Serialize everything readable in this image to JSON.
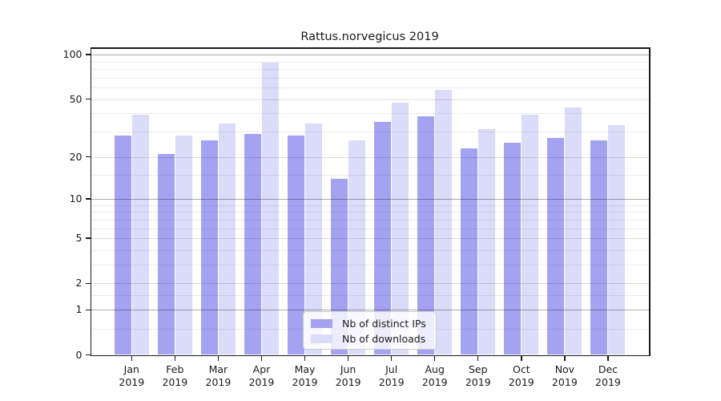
{
  "title": "Rattus.norvegicus 2019",
  "colors": {
    "ips": "#a3a3f2",
    "downloads": "#dbdbfa",
    "grid_decade": "rgba(0,0,0,0.33)",
    "grid_mid": "rgba(0,0,0,0.13)",
    "grid_minor": "rgba(0,0,0,0.07)",
    "axis": "#1a1a1a",
    "text": "#1a1a1a",
    "legend_border": "#cccccc",
    "legend_bg": "rgba(255,255,255,0.8)"
  },
  "legend": {
    "items": [
      {
        "key": "ips",
        "label": "Nb of distinct IPs"
      },
      {
        "key": "downloads",
        "label": "Nb of downloads"
      }
    ],
    "position": "lower center"
  },
  "chart_data": {
    "type": "bar",
    "title": "Rattus.norvegicus 2019",
    "categories": [
      "Jan 2019",
      "Feb 2019",
      "Mar 2019",
      "Apr 2019",
      "May 2019",
      "Jun 2019",
      "Jul 2019",
      "Aug 2019",
      "Sep 2019",
      "Oct 2019",
      "Nov 2019",
      "Dec 2019"
    ],
    "month_labels": [
      "Jan",
      "Feb",
      "Mar",
      "Apr",
      "May",
      "Jun",
      "Jul",
      "Aug",
      "Sep",
      "Oct",
      "Nov",
      "Dec"
    ],
    "year_label": "2019",
    "series": [
      {
        "name": "Nb of distinct IPs",
        "color_key": "ips",
        "values": [
          28,
          21,
          26,
          29,
          28,
          14,
          35,
          38,
          23,
          25,
          27,
          26
        ]
      },
      {
        "name": "Nb of downloads",
        "color_key": "downloads",
        "values": [
          39,
          28,
          34,
          89,
          34,
          26,
          47,
          58,
          31,
          39,
          44,
          33
        ]
      }
    ],
    "xlabel": "",
    "ylabel": "",
    "y_scale": "log1p",
    "ylim": [
      0,
      110
    ],
    "y_ticks": [
      0,
      1,
      2,
      5,
      10,
      20,
      50,
      100
    ],
    "y_grid_decade": [
      1,
      10,
      100
    ],
    "y_grid_mid": [
      2,
      5,
      20,
      50
    ],
    "y_grid_minor": [
      0.5,
      1.5,
      3,
      4,
      6,
      7,
      8,
      9,
      15,
      30,
      40,
      60,
      70,
      80,
      90
    ],
    "grid": true,
    "legend_position": "lower center"
  }
}
